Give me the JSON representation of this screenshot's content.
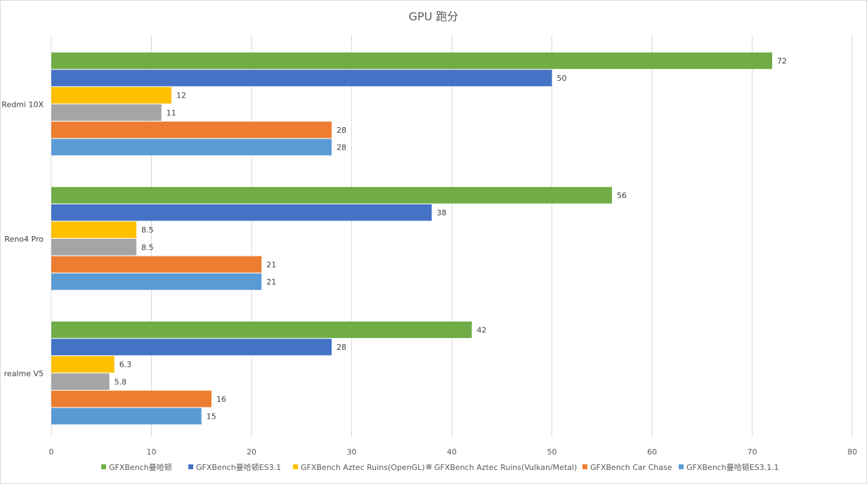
{
  "chart_data": {
    "type": "bar",
    "orientation": "horizontal",
    "title": "GPU 跑分",
    "categories": [
      "Redmi 10X",
      "Reno4 Pro",
      "realme V5"
    ],
    "series": [
      {
        "name": "GFXBench曼哈顿",
        "color": "#70AD47",
        "values": [
          72,
          56,
          42
        ],
        "labels": [
          "72",
          "56",
          "42"
        ]
      },
      {
        "name": "GFXBench曼哈顿ES3.1",
        "color": "#4472C4",
        "values": [
          50,
          38,
          28
        ],
        "labels": [
          "50",
          "38",
          "28"
        ]
      },
      {
        "name": "GFXBench Aztec Ruins(OpenGL)",
        "color": "#FFC000",
        "values": [
          12,
          8.5,
          6.3
        ],
        "labels": [
          "12",
          "8.5",
          "6.3"
        ]
      },
      {
        "name": "GFXBench Aztec Ruins(Vulkan/Metal)",
        "color": "#A5A5A5",
        "values": [
          11,
          8.5,
          5.8
        ],
        "labels": [
          "11",
          "8.5",
          "5.8"
        ]
      },
      {
        "name": "GFXBench Car Chase",
        "color": "#ED7D31",
        "values": [
          28,
          21,
          16
        ],
        "labels": [
          "28",
          "21",
          "16"
        ]
      },
      {
        "name": "GFXBench曼哈顿ES3.1.1",
        "color": "#5B9BD5",
        "values": [
          28,
          21,
          15
        ],
        "labels": [
          "28",
          "21",
          "15"
        ]
      }
    ],
    "xlim": [
      0,
      80
    ],
    "xticks": [
      0,
      10,
      20,
      30,
      40,
      50,
      60,
      70,
      80
    ],
    "xtick_labels": [
      "0",
      "10",
      "20",
      "30",
      "40",
      "50",
      "60",
      "70",
      "80"
    ],
    "xlabel": "",
    "ylabel": "",
    "grid": true,
    "legend_position": "bottom"
  }
}
